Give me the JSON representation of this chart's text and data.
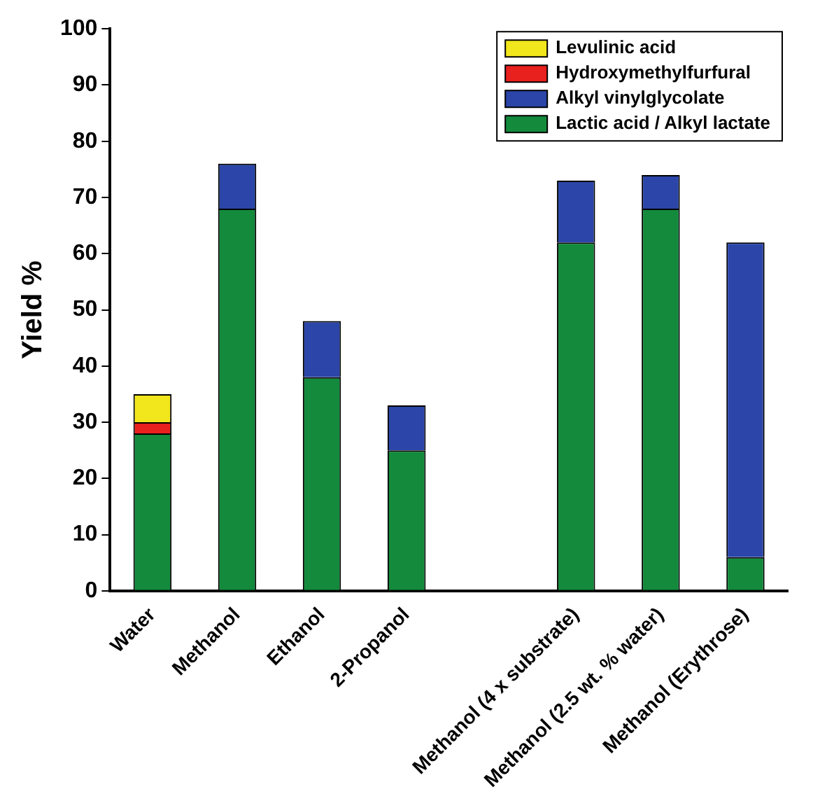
{
  "chart_data": {
    "type": "bar",
    "stacked": true,
    "ylabel": "Yield %",
    "categories": [
      "Water",
      "Methanol",
      "Ethanol",
      "2-Propanol",
      null,
      "Methanol (4 x substrate)",
      "Methanol (2.5 wt. % water)",
      "Methanol (Erythrose)"
    ],
    "series": [
      {
        "name": "Lactic acid / Alkyl lactate",
        "color": "#138a3c",
        "values": [
          28,
          68,
          38,
          25,
          null,
          62,
          68,
          6
        ]
      },
      {
        "name": "Alkyl vinylglycolate",
        "color": "#2b46a8",
        "values": [
          null,
          8,
          10,
          8,
          null,
          11,
          6,
          56
        ]
      },
      {
        "name": "Hydroxymethylfurfural",
        "color": "#e8201e",
        "values": [
          2,
          null,
          null,
          null,
          null,
          null,
          null,
          null
        ]
      },
      {
        "name": "Levulinic acid",
        "color": "#f2e61c",
        "values": [
          5,
          null,
          null,
          null,
          null,
          null,
          null,
          null
        ]
      }
    ],
    "ylim": [
      0,
      100
    ],
    "yticks": [
      0,
      10,
      20,
      30,
      40,
      50,
      60,
      70,
      80,
      90,
      100
    ],
    "grid": false,
    "legend": "top right"
  }
}
